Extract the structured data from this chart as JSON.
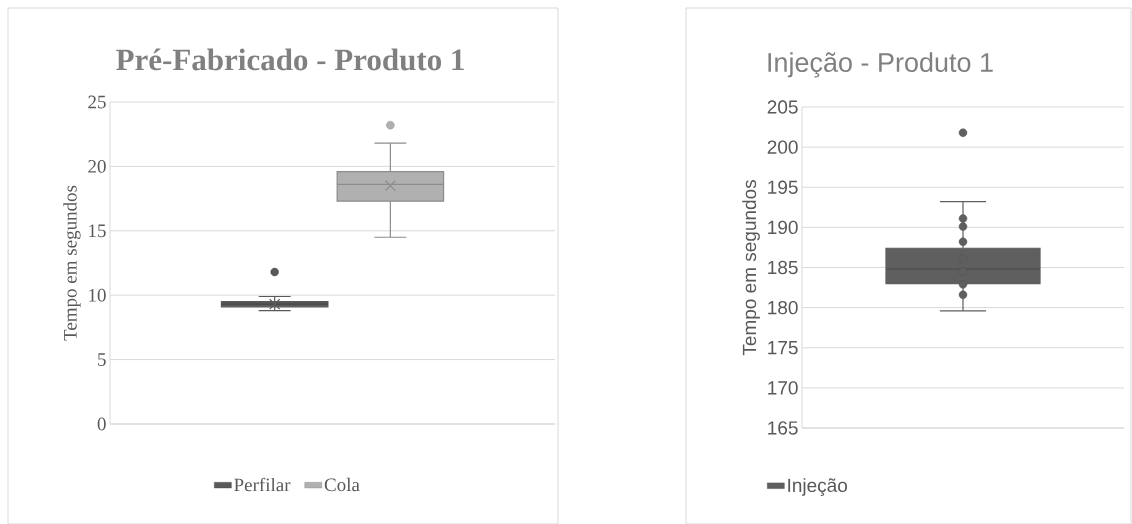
{
  "chart_data": [
    {
      "type": "box",
      "title": "Pré-Fabricado - Produto 1",
      "ylabel": "Tempo em segundos",
      "categories": [
        null
      ],
      "ylim": [
        0,
        25
      ],
      "yticks": [
        0,
        5,
        10,
        15,
        20,
        25
      ],
      "grid": "y",
      "legend": "bottom",
      "tick_labels": "y",
      "series": [
        {
          "name": "Perfilar",
          "color": "#595959",
          "boxes": [
            {
              "low": 8.8,
              "q1": 9.1,
              "median": 9.3,
              "q3": 9.5,
              "high": 9.9,
              "mean": 9.3,
              "outliers": [
                11.8
              ]
            }
          ]
        },
        {
          "name": "Cola",
          "color": "#b0b0b0",
          "boxes": [
            {
              "low": 14.5,
              "q1": 17.3,
              "median": 18.6,
              "q3": 19.6,
              "high": 21.8,
              "mean": 18.5,
              "outliers": [
                23.2
              ]
            }
          ]
        }
      ]
    },
    {
      "type": "box",
      "title": "Injeção - Produto 1",
      "ylabel": "Tempo em segundos",
      "categories": [
        null
      ],
      "ylim": [
        165,
        205
      ],
      "yticks": [
        165,
        170,
        175,
        180,
        185,
        190,
        195,
        200,
        205
      ],
      "grid": "y",
      "legend": "bottom",
      "tick_labels": "y",
      "series": [
        {
          "name": "Injeção",
          "color": "#5f5f5f",
          "boxes": [
            {
              "low": 179.6,
              "q1": 183.0,
              "median": 184.8,
              "q3": 187.4,
              "high": 193.2,
              "mean": 185.8,
              "outliers": [
                201.8,
                191.1,
                190.1,
                188.2,
                186.1,
                184.5,
                182.9,
                181.6
              ]
            }
          ]
        }
      ]
    }
  ]
}
